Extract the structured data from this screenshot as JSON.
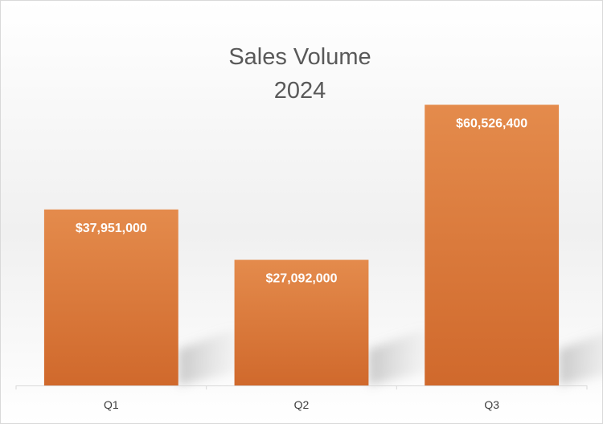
{
  "chart_data": {
    "type": "bar",
    "title": "Sales Volume",
    "subtitle": "2024",
    "xlabel": "",
    "ylabel": "",
    "categories": [
      "Q1",
      "Q2",
      "Q3"
    ],
    "series": [
      {
        "values": [
          37951000,
          27092000,
          60526400
        ],
        "data_labels": [
          "$37,951,000",
          "$27,092,000",
          "$60,526,400"
        ]
      }
    ],
    "ylim": [
      0,
      71000000
    ],
    "grid": false,
    "legend": "none",
    "colors": {
      "bar_top": "#E48B4C",
      "bar_bottom": "#D0692C",
      "title": "#595959",
      "tick": "#404040",
      "data_label": "#ffffff"
    }
  }
}
